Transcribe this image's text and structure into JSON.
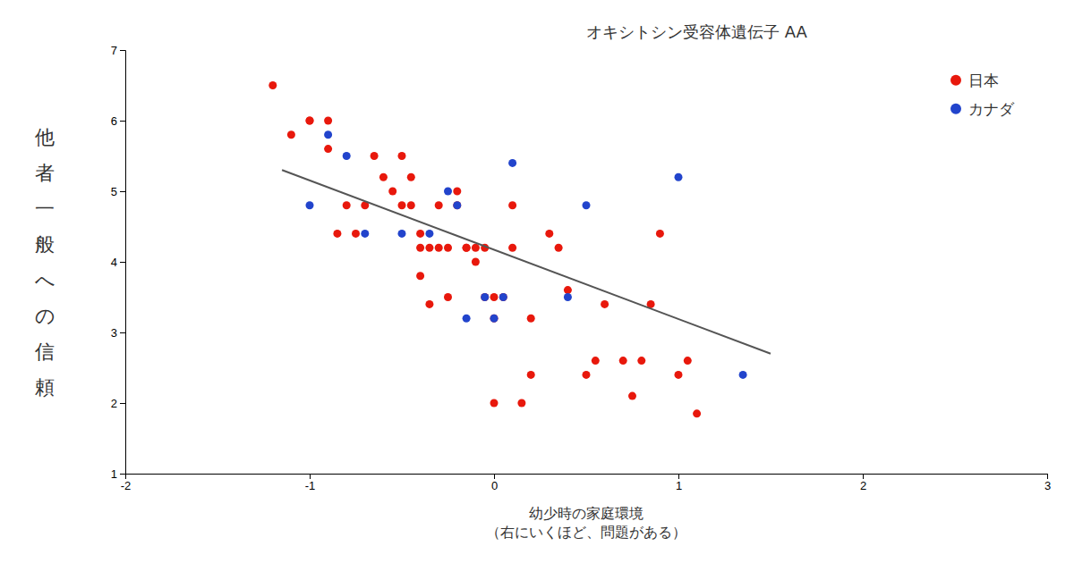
{
  "chart_data": {
    "type": "scatter",
    "title": "オキシトシン受容体遺伝子 AA",
    "xlabel": [
      "幼少時の家庭環境",
      "（右にいくほど、問題がある）"
    ],
    "ylabel": "他者一般への信頼",
    "xlim": [
      -2,
      3
    ],
    "ylim": [
      1,
      7
    ],
    "xticks": [
      -2,
      -1,
      0,
      1,
      2,
      3
    ],
    "yticks": [
      1,
      2,
      3,
      4,
      5,
      6,
      7
    ],
    "grid": false,
    "legend": "upper right",
    "series": [
      {
        "name": "日本",
        "color": "#e8180c",
        "x": [
          -1.2,
          -1.1,
          -1.0,
          -1.0,
          -0.9,
          -0.9,
          -0.85,
          -0.8,
          -0.75,
          -0.7,
          -0.65,
          -0.6,
          -0.55,
          -0.5,
          -0.5,
          -0.45,
          -0.45,
          -0.4,
          -0.4,
          -0.4,
          -0.35,
          -0.35,
          -0.3,
          -0.3,
          -0.25,
          -0.25,
          -0.2,
          -0.2,
          -0.15,
          -0.15,
          -0.1,
          -0.1,
          -0.05,
          -0.05,
          0.0,
          0.0,
          0.0,
          0.05,
          0.1,
          0.1,
          0.15,
          0.2,
          0.2,
          0.3,
          0.35,
          0.4,
          0.5,
          0.55,
          0.6,
          0.7,
          0.75,
          0.8,
          0.85,
          0.9,
          1.0,
          1.05,
          1.1
        ],
        "values": [
          6.5,
          5.8,
          6.0,
          6.0,
          6.0,
          5.6,
          4.4,
          4.8,
          4.4,
          4.8,
          5.5,
          5.2,
          5.0,
          4.8,
          5.5,
          5.2,
          4.8,
          4.4,
          4.2,
          3.8,
          4.2,
          3.4,
          4.8,
          4.2,
          4.2,
          3.5,
          5.0,
          4.8,
          4.2,
          4.2,
          4.2,
          4.0,
          4.2,
          3.5,
          3.5,
          3.2,
          2.0,
          3.5,
          4.8,
          4.2,
          2.0,
          3.2,
          2.4,
          4.4,
          4.2,
          3.6,
          2.4,
          2.6,
          3.4,
          2.6,
          2.1,
          2.6,
          3.4,
          4.4,
          2.4,
          2.6,
          1.85
        ]
      },
      {
        "name": "カナダ",
        "color": "#2244cc",
        "x": [
          -1.0,
          -0.9,
          -0.8,
          -0.7,
          -0.5,
          -0.35,
          -0.25,
          -0.2,
          -0.15,
          -0.05,
          0.0,
          0.05,
          0.1,
          0.4,
          0.5,
          1.0,
          1.35
        ],
        "values": [
          4.8,
          5.8,
          5.5,
          4.4,
          4.4,
          4.4,
          5.0,
          4.8,
          3.2,
          3.5,
          3.2,
          3.5,
          5.4,
          3.5,
          4.8,
          5.2,
          2.4
        ]
      },
      {
        "type": "line",
        "color": "#555555",
        "x": [
          -1.15,
          1.5
        ],
        "values": [
          5.3,
          2.7
        ]
      }
    ]
  }
}
